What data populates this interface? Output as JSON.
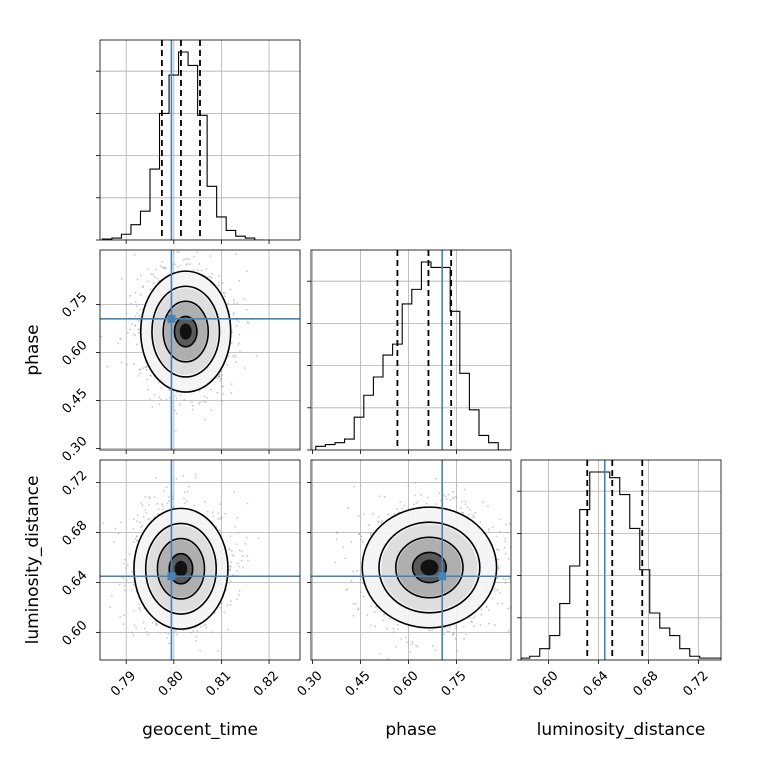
{
  "chart_data": {
    "type": "corner",
    "parameters": [
      "geocent_time",
      "phase",
      "luminosity_distance"
    ],
    "truths": {
      "geocent_time": 0.7995,
      "phase": 0.705,
      "luminosity_distance": 0.645
    },
    "truth_color": "#4682b4",
    "quantile_lines": {
      "geocent_time": [
        0.7975,
        0.8015,
        0.8055
      ],
      "phase": [
        0.565,
        0.662,
        0.733
      ],
      "luminosity_distance": [
        0.631,
        0.651,
        0.675
      ]
    },
    "axes": {
      "geocent_time": {
        "range": [
          0.7845,
          0.8265
        ],
        "ticks": [
          0.79,
          0.8,
          0.81,
          0.82
        ],
        "tick_labels": [
          "0.79",
          "0.80",
          "0.81",
          "0.82"
        ]
      },
      "phase": {
        "range": [
          0.295,
          0.92
        ],
        "ticks": [
          0.3,
          0.45,
          0.6,
          0.75
        ],
        "tick_labels": [
          "0.30",
          "0.45",
          "0.60",
          "0.75"
        ]
      },
      "luminosity_distance": {
        "range": [
          0.578,
          0.738
        ],
        "ticks": [
          0.6,
          0.64,
          0.68,
          0.72
        ],
        "tick_labels": [
          "0.60",
          "0.64",
          "0.68",
          "0.72"
        ]
      }
    },
    "histograms": {
      "geocent_time": {
        "edges": [
          0.785,
          0.787,
          0.789,
          0.791,
          0.793,
          0.795,
          0.797,
          0.799,
          0.801,
          0.803,
          0.805,
          0.807,
          0.809,
          0.811,
          0.813,
          0.815,
          0.817,
          0.819
        ],
        "counts": [
          0.5,
          1,
          3,
          8,
          15,
          37,
          66,
          86,
          98,
          91,
          65,
          28,
          12,
          5,
          2,
          1,
          0
        ]
      },
      "phase": {
        "edges": [
          0.31,
          0.34,
          0.37,
          0.4,
          0.43,
          0.46,
          0.49,
          0.52,
          0.55,
          0.58,
          0.61,
          0.64,
          0.67,
          0.7,
          0.73,
          0.76,
          0.79,
          0.82,
          0.85,
          0.88,
          0.91
        ],
        "counts": [
          2,
          3,
          4,
          6,
          18,
          30,
          40,
          52,
          58,
          80,
          88,
          103,
          100,
          100,
          76,
          42,
          22,
          8,
          4,
          0
        ]
      },
      "luminosity_distance": {
        "edges": [
          0.578,
          0.585,
          0.593,
          0.601,
          0.609,
          0.617,
          0.625,
          0.633,
          0.641,
          0.649,
          0.657,
          0.665,
          0.673,
          0.681,
          0.689,
          0.697,
          0.705,
          0.713,
          0.721,
          0.729,
          0.738
        ],
        "counts": [
          1,
          2,
          6,
          13,
          30,
          50,
          80,
          100,
          100,
          97,
          88,
          70,
          48,
          25,
          17,
          13,
          6,
          2,
          1,
          1
        ]
      }
    },
    "pairs": [
      {
        "x": "geocent_time",
        "y": "phase",
        "center": [
          0.8025,
          0.665
        ],
        "sigma": [
          0.0045,
          0.09
        ],
        "contours_sigma": [
          0.5,
          1.0,
          1.5,
          2.0
        ]
      },
      {
        "x": "geocent_time",
        "y": "luminosity_distance",
        "center": [
          0.8015,
          0.651
        ],
        "sigma": [
          0.0047,
          0.023
        ],
        "contours_sigma": [
          0.5,
          1.0,
          1.5,
          2.0
        ]
      },
      {
        "x": "phase",
        "y": "luminosity_distance",
        "center": [
          0.665,
          0.652
        ],
        "sigma": [
          0.1,
          0.023
        ],
        "contours_sigma": [
          0.5,
          1.0,
          1.5,
          2.0
        ]
      }
    ],
    "grid": true
  }
}
